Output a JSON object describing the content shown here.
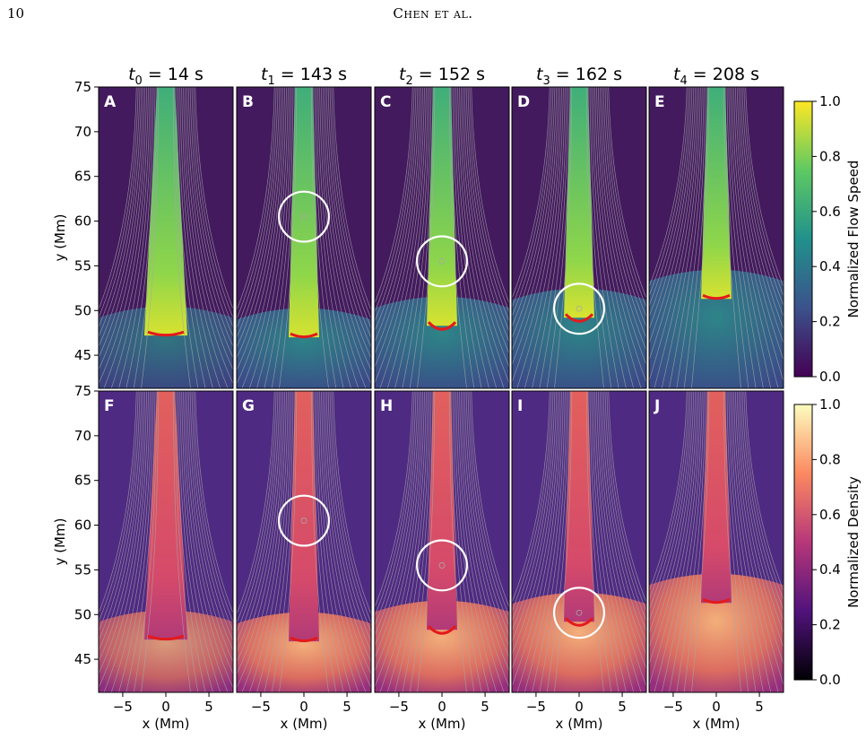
{
  "header": {
    "page_number": "10",
    "running_head": "Chen et al."
  },
  "figure": {
    "columns": [
      {
        "t_sub": "0",
        "value": "14 s"
      },
      {
        "t_sub": "1",
        "value": "143 s"
      },
      {
        "t_sub": "2",
        "value": "152 s"
      },
      {
        "t_sub": "3",
        "value": "162 s"
      },
      {
        "t_sub": "4",
        "value": "208 s"
      }
    ],
    "time_symbol": "t",
    "time_equals": " = ",
    "top_panel_letters": [
      "A",
      "B",
      "C",
      "D",
      "E"
    ],
    "bottom_panel_letters": [
      "F",
      "G",
      "H",
      "I",
      "J"
    ],
    "x_label": "x (Mm)",
    "y_label": "y (Mm)",
    "x_ticks": [
      "−5",
      "0",
      "5"
    ],
    "x_tick_values": [
      -5,
      0,
      5
    ],
    "x_range": [
      -7.8,
      7.8
    ],
    "y_ticks": [
      "75",
      "70",
      "65",
      "60",
      "55",
      "50",
      "45"
    ],
    "y_tick_values": [
      75,
      70,
      65,
      60,
      55,
      50,
      45
    ],
    "y_range": [
      41.3,
      75
    ],
    "circles": [
      {
        "column": 1,
        "x": 0,
        "y": 60.5,
        "radius_mm": 2.9
      },
      {
        "column": 2,
        "x": 0,
        "y": 55.5,
        "radius_mm": 2.9
      },
      {
        "column": 3,
        "x": 0,
        "y": 50.2,
        "radius_mm": 2.9
      }
    ],
    "front_y": [
      47.2,
      47.0,
      48.3,
      49.2,
      51.3
    ],
    "colorbars": {
      "top": {
        "label": "Normalized Flow Speed",
        "ticks": [
          "1.0",
          "0.8",
          "0.6",
          "0.4",
          "0.2",
          "0.0"
        ],
        "colormap": "viridis"
      },
      "bottom": {
        "label": "Normalized Density",
        "ticks": [
          "1.0",
          "0.8",
          "0.6",
          "0.4",
          "0.2",
          "0.0"
        ],
        "colormap": "magma"
      }
    },
    "colors": {
      "front": "#e31a1c",
      "circle": "#ffffff",
      "field_lines": "#a8a8a8"
    }
  }
}
